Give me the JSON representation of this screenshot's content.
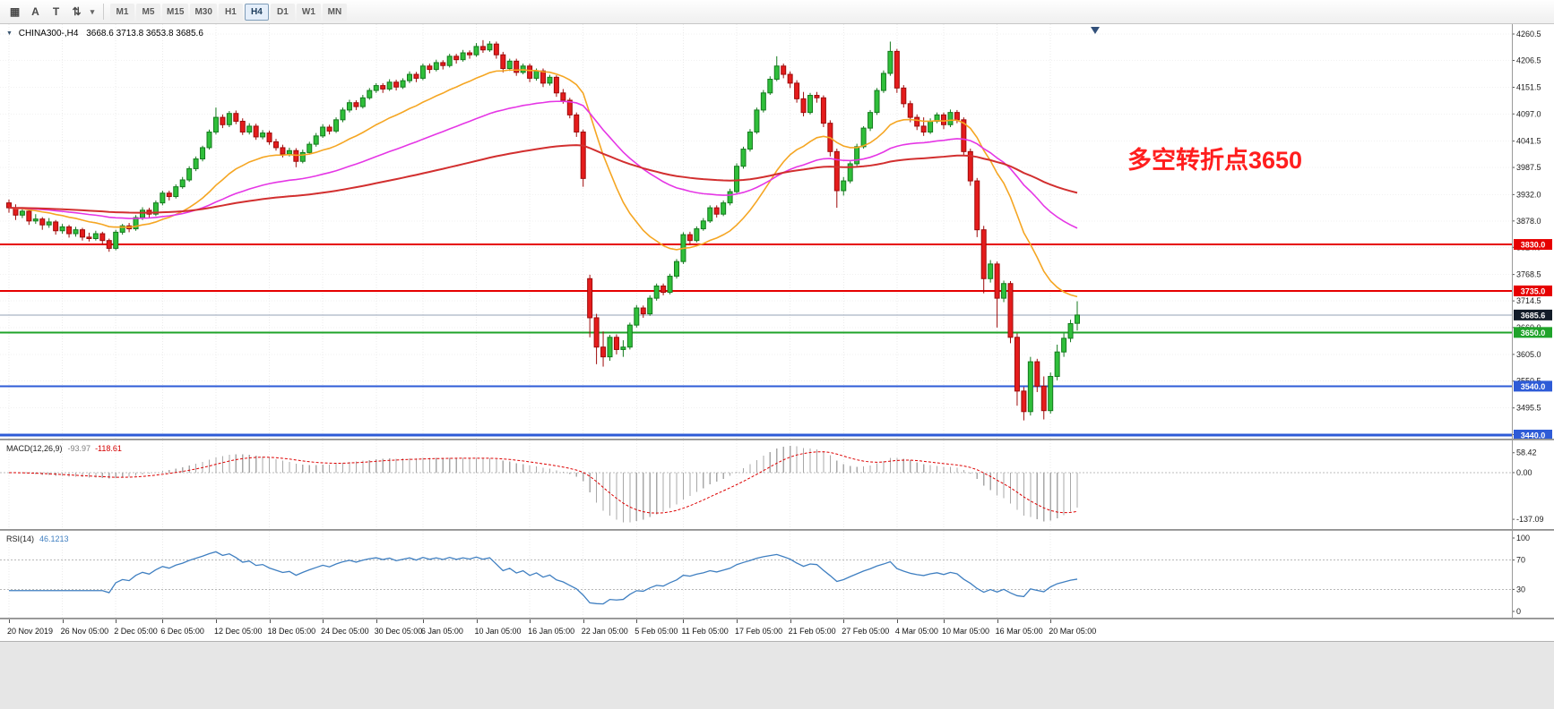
{
  "toolbar": {
    "tools": [
      {
        "name": "charts-grid",
        "glyph": "▦"
      },
      {
        "name": "cursor",
        "glyph": "A"
      },
      {
        "name": "text",
        "glyph": "T"
      },
      {
        "name": "shift-tools",
        "glyph": "⇅"
      }
    ],
    "dropdown_glyph": "▾",
    "timeframes": [
      "M1",
      "M5",
      "M15",
      "M30",
      "H1",
      "H4",
      "D1",
      "W1",
      "MN"
    ],
    "active": "H4"
  },
  "chart_header": {
    "icon": "▼",
    "symbol": "CHINA300-,H4",
    "ohlc": "3668.6 3713.8 3653.8 3685.6"
  },
  "annotation": {
    "text": "多空转折点3650",
    "color": "#ff1e1e"
  },
  "chart_data": {
    "type": "candlestick",
    "symbol": "CHINA300-",
    "timeframe": "H4",
    "ylim": [
      3440,
      4272
    ],
    "colors": {
      "up_fill": "#2fbf3a",
      "up_border": "#157a1e",
      "down_fill": "#e51c1c",
      "down_border": "#9e0b0b",
      "grid": "#ebebeb",
      "background": "#ffffff"
    },
    "price_axis_labels": [
      "4260.5",
      "4206.5",
      "4151.5",
      "4097.0",
      "4041.5",
      "3987.5",
      "3932.0",
      "3878.0",
      "3824.0",
      "3768.5",
      "3714.5",
      "3660.0",
      "3605.0",
      "3550.5",
      "3495.5",
      "3441.0"
    ],
    "levels": [
      {
        "label": "3830.0",
        "value": 3830.0,
        "color": "#e60000",
        "width": 2
      },
      {
        "label": "3735.0",
        "value": 3735.0,
        "color": "#e60000",
        "width": 2
      },
      {
        "label": "3685.6",
        "value": 3685.6,
        "color": "#93a1b5",
        "width": 1,
        "badge_bg": "#131c28",
        "current": true
      },
      {
        "label": "3650.0",
        "value": 3650.0,
        "color": "#1fa32a",
        "width": 2
      },
      {
        "label": "3540.0",
        "value": 3540.0,
        "color": "#2e5bd7",
        "width": 2
      },
      {
        "label": "3440.0",
        "value": 3440.0,
        "color": "#2e5bd7",
        "width": 3
      }
    ],
    "moving_averages": [
      {
        "period": 21,
        "method": "ema",
        "color": "#f5a623",
        "width": 1.6
      },
      {
        "period": 55,
        "method": "ema",
        "color": "#e536e5",
        "width": 1.6
      },
      {
        "period": 140,
        "method": "ema",
        "color": "#d22f2f",
        "width": 2
      }
    ],
    "macd": {
      "label": "MACD(12,26,9)",
      "value_main": "-93.97",
      "value_signal": "-118.61",
      "fast": 12,
      "slow": 26,
      "signal": 9,
      "axis_labels": [
        "58.42",
        "0.00",
        "-137.09"
      ],
      "histogram_color": "#a8a8a8",
      "signal_color": "#dd0000"
    },
    "rsi": {
      "label": "RSI(14)",
      "value_text": "46.1213",
      "period": 14,
      "axis_labels": [
        "100",
        "70",
        "30",
        "0"
      ],
      "level_lines": [
        70,
        30
      ],
      "color": "#3f7fc1"
    },
    "time_labels": [
      {
        "text": "20 Nov 2019",
        "candle": 0
      },
      {
        "text": "26 Nov 05:00",
        "candle": 8
      },
      {
        "text": "2 Dec 05:00",
        "candle": 16
      },
      {
        "text": "6 Dec 05:00",
        "candle": 23
      },
      {
        "text": "12 Dec 05:00",
        "candle": 31
      },
      {
        "text": "18 Dec 05:00",
        "candle": 39
      },
      {
        "text": "24 Dec 05:00",
        "candle": 47
      },
      {
        "text": "30 Dec 05:00",
        "candle": 55
      },
      {
        "text": "6 Jan 05:00",
        "candle": 62
      },
      {
        "text": "10 Jan 05:00",
        "candle": 70
      },
      {
        "text": "16 Jan 05:00",
        "candle": 78
      },
      {
        "text": "22 Jan 05:00",
        "candle": 86
      },
      {
        "text": "5 Feb 05:00",
        "candle": 94
      },
      {
        "text": "11 Feb 05:00",
        "candle": 101
      },
      {
        "text": "17 Feb 05:00",
        "candle": 109
      },
      {
        "text": "21 Feb 05:00",
        "candle": 117
      },
      {
        "text": "27 Feb 05:00",
        "candle": 125
      },
      {
        "text": "4 Mar 05:00",
        "candle": 133
      },
      {
        "text": "10 Mar 05:00",
        "candle": 140
      },
      {
        "text": "16 Mar 05:00",
        "candle": 148
      },
      {
        "text": "20 Mar 05:00",
        "candle": 156
      }
    ],
    "candles": [
      [
        3915,
        3922,
        3895,
        3905
      ],
      [
        3905,
        3912,
        3880,
        3890
      ],
      [
        3890,
        3904,
        3884,
        3898
      ],
      [
        3898,
        3902,
        3870,
        3878
      ],
      [
        3878,
        3892,
        3872,
        3882
      ],
      [
        3882,
        3886,
        3860,
        3870
      ],
      [
        3870,
        3884,
        3864,
        3876
      ],
      [
        3876,
        3880,
        3850,
        3858
      ],
      [
        3858,
        3872,
        3852,
        3866
      ],
      [
        3866,
        3870,
        3844,
        3852
      ],
      [
        3852,
        3866,
        3846,
        3860
      ],
      [
        3860,
        3864,
        3838,
        3845
      ],
      [
        3845,
        3854,
        3836,
        3842
      ],
      [
        3842,
        3858,
        3838,
        3852
      ],
      [
        3852,
        3856,
        3830,
        3838
      ],
      [
        3838,
        3842,
        3815,
        3822
      ],
      [
        3822,
        3860,
        3818,
        3855
      ],
      [
        3855,
        3872,
        3850,
        3868
      ],
      [
        3868,
        3874,
        3855,
        3862
      ],
      [
        3862,
        3890,
        3858,
        3885
      ],
      [
        3885,
        3906,
        3880,
        3900
      ],
      [
        3900,
        3905,
        3885,
        3892
      ],
      [
        3892,
        3920,
        3888,
        3915
      ],
      [
        3915,
        3940,
        3910,
        3935
      ],
      [
        3935,
        3940,
        3920,
        3928
      ],
      [
        3928,
        3953,
        3924,
        3948
      ],
      [
        3948,
        3968,
        3944,
        3962
      ],
      [
        3962,
        3990,
        3958,
        3985
      ],
      [
        3985,
        4010,
        3980,
        4005
      ],
      [
        4005,
        4032,
        4000,
        4028
      ],
      [
        4028,
        4065,
        4024,
        4060
      ],
      [
        4060,
        4110,
        4055,
        4090
      ],
      [
        4090,
        4096,
        4068,
        4075
      ],
      [
        4075,
        4103,
        4070,
        4098
      ],
      [
        4098,
        4104,
        4076,
        4082
      ],
      [
        4082,
        4088,
        4054,
        4060
      ],
      [
        4060,
        4078,
        4055,
        4072
      ],
      [
        4072,
        4077,
        4044,
        4050
      ],
      [
        4050,
        4064,
        4045,
        4058
      ],
      [
        4058,
        4063,
        4034,
        4040
      ],
      [
        4040,
        4046,
        4022,
        4028
      ],
      [
        4028,
        4034,
        4008,
        4015
      ],
      [
        4015,
        4028,
        4010,
        4022
      ],
      [
        4022,
        4027,
        3988,
        4000
      ],
      [
        4000,
        4024,
        3996,
        4018
      ],
      [
        4018,
        4040,
        4014,
        4035
      ],
      [
        4035,
        4058,
        4030,
        4052
      ],
      [
        4052,
        4076,
        4048,
        4070
      ],
      [
        4070,
        4075,
        4055,
        4062
      ],
      [
        4062,
        4090,
        4058,
        4085
      ],
      [
        4085,
        4110,
        4080,
        4105
      ],
      [
        4105,
        4126,
        4100,
        4120
      ],
      [
        4120,
        4125,
        4105,
        4112
      ],
      [
        4112,
        4136,
        4108,
        4130
      ],
      [
        4130,
        4150,
        4126,
        4145
      ],
      [
        4145,
        4160,
        4140,
        4155
      ],
      [
        4155,
        4160,
        4140,
        4148
      ],
      [
        4148,
        4168,
        4144,
        4162
      ],
      [
        4162,
        4167,
        4145,
        4152
      ],
      [
        4152,
        4170,
        4148,
        4165
      ],
      [
        4165,
        4184,
        4160,
        4178
      ],
      [
        4178,
        4183,
        4162,
        4170
      ],
      [
        4170,
        4200,
        4166,
        4195
      ],
      [
        4195,
        4200,
        4180,
        4188
      ],
      [
        4188,
        4208,
        4184,
        4202
      ],
      [
        4202,
        4207,
        4188,
        4196
      ],
      [
        4196,
        4220,
        4192,
        4215
      ],
      [
        4215,
        4220,
        4200,
        4208
      ],
      [
        4208,
        4228,
        4204,
        4222
      ],
      [
        4222,
        4227,
        4210,
        4218
      ],
      [
        4218,
        4242,
        4214,
        4235
      ],
      [
        4235,
        4248,
        4222,
        4228
      ],
      [
        4228,
        4246,
        4224,
        4240
      ],
      [
        4240,
        4245,
        4210,
        4218
      ],
      [
        4218,
        4224,
        4182,
        4190
      ],
      [
        4190,
        4210,
        4185,
        4205
      ],
      [
        4205,
        4210,
        4175,
        4182
      ],
      [
        4182,
        4200,
        4178,
        4195
      ],
      [
        4195,
        4200,
        4162,
        4170
      ],
      [
        4170,
        4190,
        4165,
        4185
      ],
      [
        4185,
        4190,
        4152,
        4160
      ],
      [
        4160,
        4177,
        4155,
        4172
      ],
      [
        4172,
        4176,
        4132,
        4140
      ],
      [
        4140,
        4148,
        4118,
        4125
      ],
      [
        4125,
        4130,
        4088,
        4095
      ],
      [
        4095,
        4100,
        4050,
        4060
      ],
      [
        4060,
        4065,
        3948,
        3965
      ],
      [
        3760,
        3768,
        3640,
        3680
      ],
      [
        3680,
        3688,
        3585,
        3620
      ],
      [
        3620,
        3652,
        3580,
        3600
      ],
      [
        3600,
        3645,
        3592,
        3640
      ],
      [
        3640,
        3646,
        3605,
        3615
      ],
      [
        3615,
        3634,
        3600,
        3620
      ],
      [
        3620,
        3670,
        3615,
        3665
      ],
      [
        3665,
        3706,
        3660,
        3700
      ],
      [
        3700,
        3705,
        3680,
        3688
      ],
      [
        3688,
        3726,
        3684,
        3720
      ],
      [
        3720,
        3750,
        3715,
        3745
      ],
      [
        3745,
        3750,
        3726,
        3732
      ],
      [
        3732,
        3770,
        3728,
        3765
      ],
      [
        3765,
        3800,
        3760,
        3795
      ],
      [
        3795,
        3855,
        3790,
        3850
      ],
      [
        3850,
        3856,
        3830,
        3838
      ],
      [
        3838,
        3867,
        3834,
        3862
      ],
      [
        3862,
        3884,
        3858,
        3878
      ],
      [
        3878,
        3910,
        3874,
        3905
      ],
      [
        3905,
        3910,
        3885,
        3892
      ],
      [
        3892,
        3920,
        3888,
        3915
      ],
      [
        3915,
        3944,
        3910,
        3938
      ],
      [
        3938,
        3996,
        3934,
        3990
      ],
      [
        3990,
        4030,
        3985,
        4025
      ],
      [
        4025,
        4066,
        4020,
        4060
      ],
      [
        4060,
        4110,
        4056,
        4105
      ],
      [
        4105,
        4146,
        4100,
        4140
      ],
      [
        4140,
        4174,
        4136,
        4168
      ],
      [
        4168,
        4215,
        4164,
        4195
      ],
      [
        4195,
        4200,
        4170,
        4178
      ],
      [
        4178,
        4184,
        4150,
        4160
      ],
      [
        4160,
        4166,
        4120,
        4128
      ],
      [
        4128,
        4142,
        4092,
        4100
      ],
      [
        4100,
        4140,
        4096,
        4135
      ],
      [
        4135,
        4142,
        4120,
        4130
      ],
      [
        4130,
        4135,
        4070,
        4078
      ],
      [
        4078,
        4084,
        4010,
        4020
      ],
      [
        4020,
        4026,
        3905,
        3940
      ],
      [
        3940,
        3968,
        3930,
        3960
      ],
      [
        3960,
        4000,
        3955,
        3995
      ],
      [
        3995,
        4036,
        3990,
        4030
      ],
      [
        4030,
        4072,
        4026,
        4068
      ],
      [
        4068,
        4105,
        4062,
        4100
      ],
      [
        4100,
        4150,
        4095,
        4145
      ],
      [
        4145,
        4186,
        4140,
        4180
      ],
      [
        4180,
        4245,
        4175,
        4225
      ],
      [
        4225,
        4230,
        4140,
        4150
      ],
      [
        4150,
        4156,
        4110,
        4118
      ],
      [
        4118,
        4124,
        4080,
        4090
      ],
      [
        4090,
        4096,
        4064,
        4072
      ],
      [
        4072,
        4090,
        4052,
        4060
      ],
      [
        4060,
        4088,
        4056,
        4082
      ],
      [
        4082,
        4100,
        4078,
        4095
      ],
      [
        4095,
        4100,
        4066,
        4075
      ],
      [
        4075,
        4106,
        4070,
        4100
      ],
      [
        4100,
        4105,
        4078,
        4085
      ],
      [
        4085,
        4090,
        4012,
        4020
      ],
      [
        4020,
        4026,
        3950,
        3960
      ],
      [
        3960,
        3966,
        3845,
        3860
      ],
      [
        3860,
        3868,
        3730,
        3760
      ],
      [
        3760,
        3798,
        3752,
        3790
      ],
      [
        3790,
        3795,
        3660,
        3720
      ],
      [
        3720,
        3756,
        3712,
        3750
      ],
      [
        3750,
        3755,
        3628,
        3640
      ],
      [
        3640,
        3648,
        3500,
        3530
      ],
      [
        3530,
        3538,
        3470,
        3488
      ],
      [
        3488,
        3600,
        3480,
        3590
      ],
      [
        3590,
        3596,
        3528,
        3540
      ],
      [
        3540,
        3560,
        3472,
        3490
      ],
      [
        3490,
        3568,
        3484,
        3560
      ],
      [
        3560,
        3625,
        3552,
        3610
      ],
      [
        3610,
        3648,
        3600,
        3638
      ],
      [
        3638,
        3676,
        3630,
        3668
      ],
      [
        3668.6,
        3713.8,
        3653.8,
        3685.6
      ]
    ]
  }
}
